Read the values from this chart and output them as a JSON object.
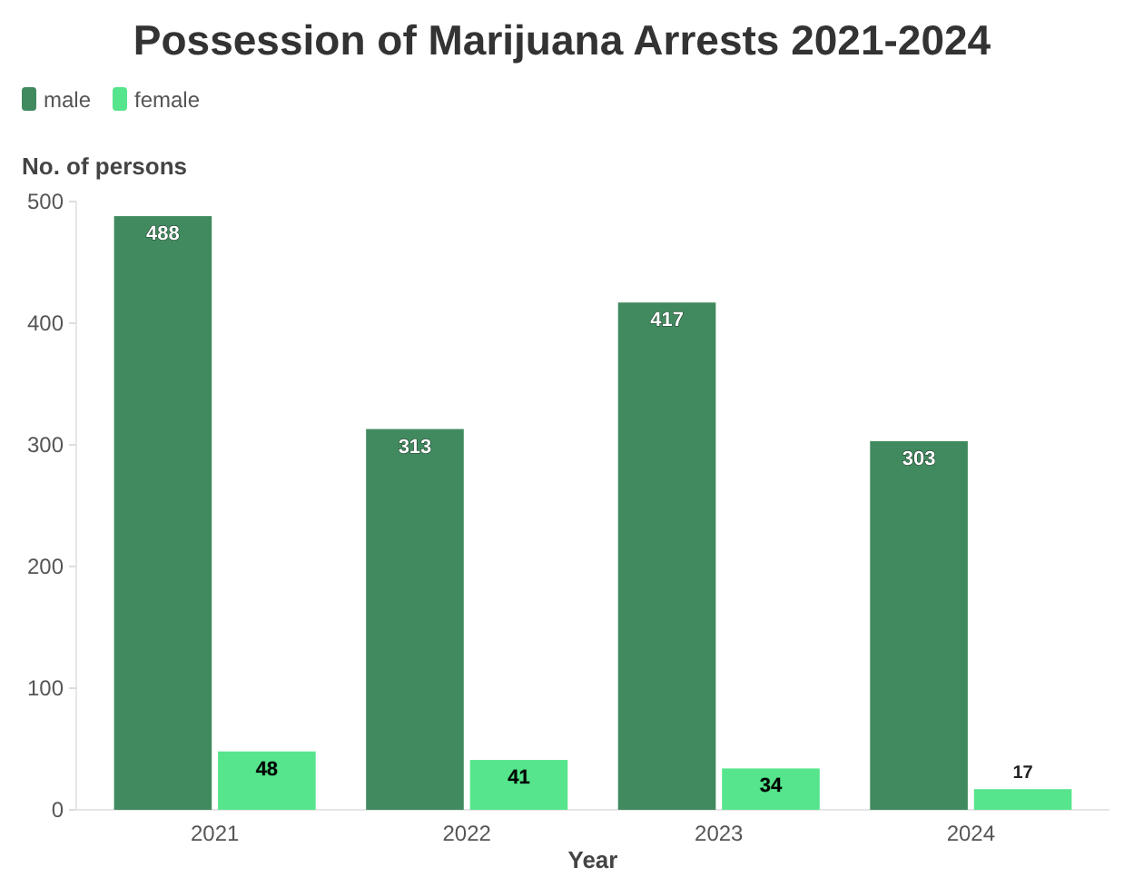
{
  "chart_data": {
    "type": "bar",
    "title": "Possession of Marijuana Arrests 2021-2024",
    "xlabel": "Year",
    "ylabel": "No. of persons",
    "categories": [
      "2021",
      "2022",
      "2023",
      "2024"
    ],
    "series": [
      {
        "name": "male",
        "color": "#418a5f",
        "values": [
          488,
          313,
          417,
          303
        ]
      },
      {
        "name": "female",
        "color": "#56e58c",
        "values": [
          48,
          41,
          34,
          17
        ]
      }
    ],
    "ylim": [
      0,
      500
    ],
    "yticks": [
      0,
      100,
      200,
      300,
      400,
      500
    ],
    "legend": "top left",
    "data_labels": true
  }
}
